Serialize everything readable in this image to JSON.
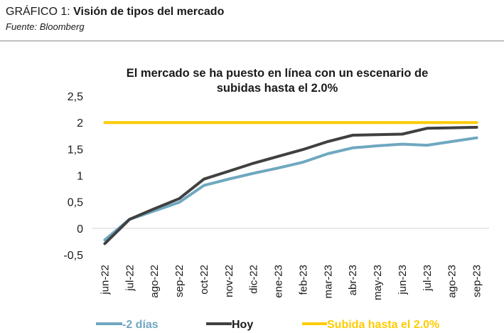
{
  "figure": {
    "label": "GRÁFICO 1:",
    "title": "Visión de tipos del mercado",
    "source": "Fuente: Bloomberg"
  },
  "chart_data": {
    "type": "line",
    "title_lines": [
      "El mercado se ha puesto en línea con un escenario de",
      "subidas hasta el 2.0%"
    ],
    "categories": [
      "jun-22",
      "jul-22",
      "ago-22",
      "sep-22",
      "oct-22",
      "nov-22",
      "dic-22",
      "ene-23",
      "feb-23",
      "mar-23",
      "abr-23",
      "may-23",
      "jun-23",
      "jul-23",
      "ago-23",
      "sep-23"
    ],
    "ylim": [
      -0.5,
      2.5
    ],
    "yticks": [
      -0.5,
      0,
      0.5,
      1,
      1.5,
      2,
      2.5
    ],
    "ytick_labels": [
      "-0,5",
      "0",
      "0,5",
      "1",
      "1,5",
      "2",
      "2,5"
    ],
    "legend_position": "bottom",
    "series": [
      {
        "name": "-2 días",
        "color": "#6fa8c0",
        "values": [
          -0.22,
          0.17,
          0.33,
          0.49,
          0.81,
          0.93,
          1.04,
          1.14,
          1.25,
          1.41,
          1.52,
          1.56,
          1.59,
          1.57,
          1.64,
          1.71
        ]
      },
      {
        "name": "Hoy",
        "color": "#404040",
        "values": [
          -0.29,
          0.17,
          0.37,
          0.56,
          0.93,
          1.08,
          1.23,
          1.36,
          1.49,
          1.64,
          1.76,
          1.77,
          1.78,
          1.89,
          1.9,
          1.91
        ]
      },
      {
        "name": "Subida hasta el 2.0%",
        "color": "#ffcc00",
        "values": [
          2.0,
          2.0,
          2.0,
          2.0,
          2.0,
          2.0,
          2.0,
          2.0,
          2.0,
          2.0,
          2.0,
          2.0,
          2.0,
          2.0,
          2.0,
          2.0
        ]
      }
    ]
  }
}
